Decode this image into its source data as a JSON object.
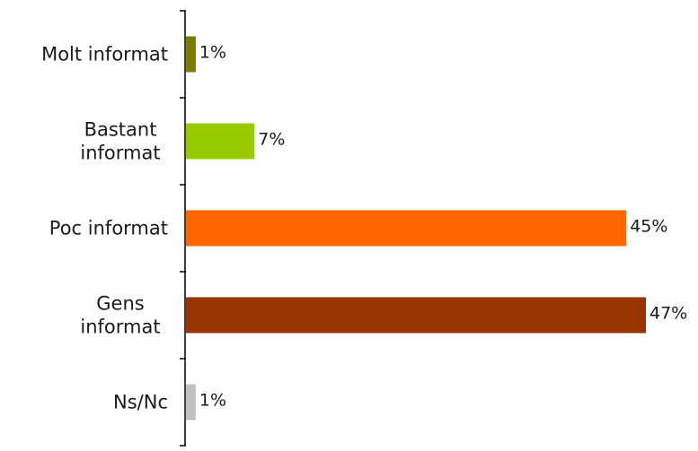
{
  "chart_data": {
    "type": "bar",
    "orientation": "horizontal",
    "title": "",
    "xlabel": "",
    "ylabel": "",
    "categories": [
      [
        "Molt informat"
      ],
      [
        "Bastant",
        "informat"
      ],
      [
        "Poc informat"
      ],
      [
        "Gens",
        "informat"
      ],
      [
        "Ns/Nc"
      ]
    ],
    "values": [
      1,
      7,
      45,
      47,
      1
    ],
    "value_labels": [
      "1%",
      "7%",
      "45%",
      "47%",
      "1%"
    ],
    "colors": [
      "#7a7a00",
      "#99cc00",
      "#ff6600",
      "#993300",
      "#c0c0c0"
    ],
    "xlim": [
      0,
      47
    ],
    "grid": false,
    "legend": "none"
  }
}
